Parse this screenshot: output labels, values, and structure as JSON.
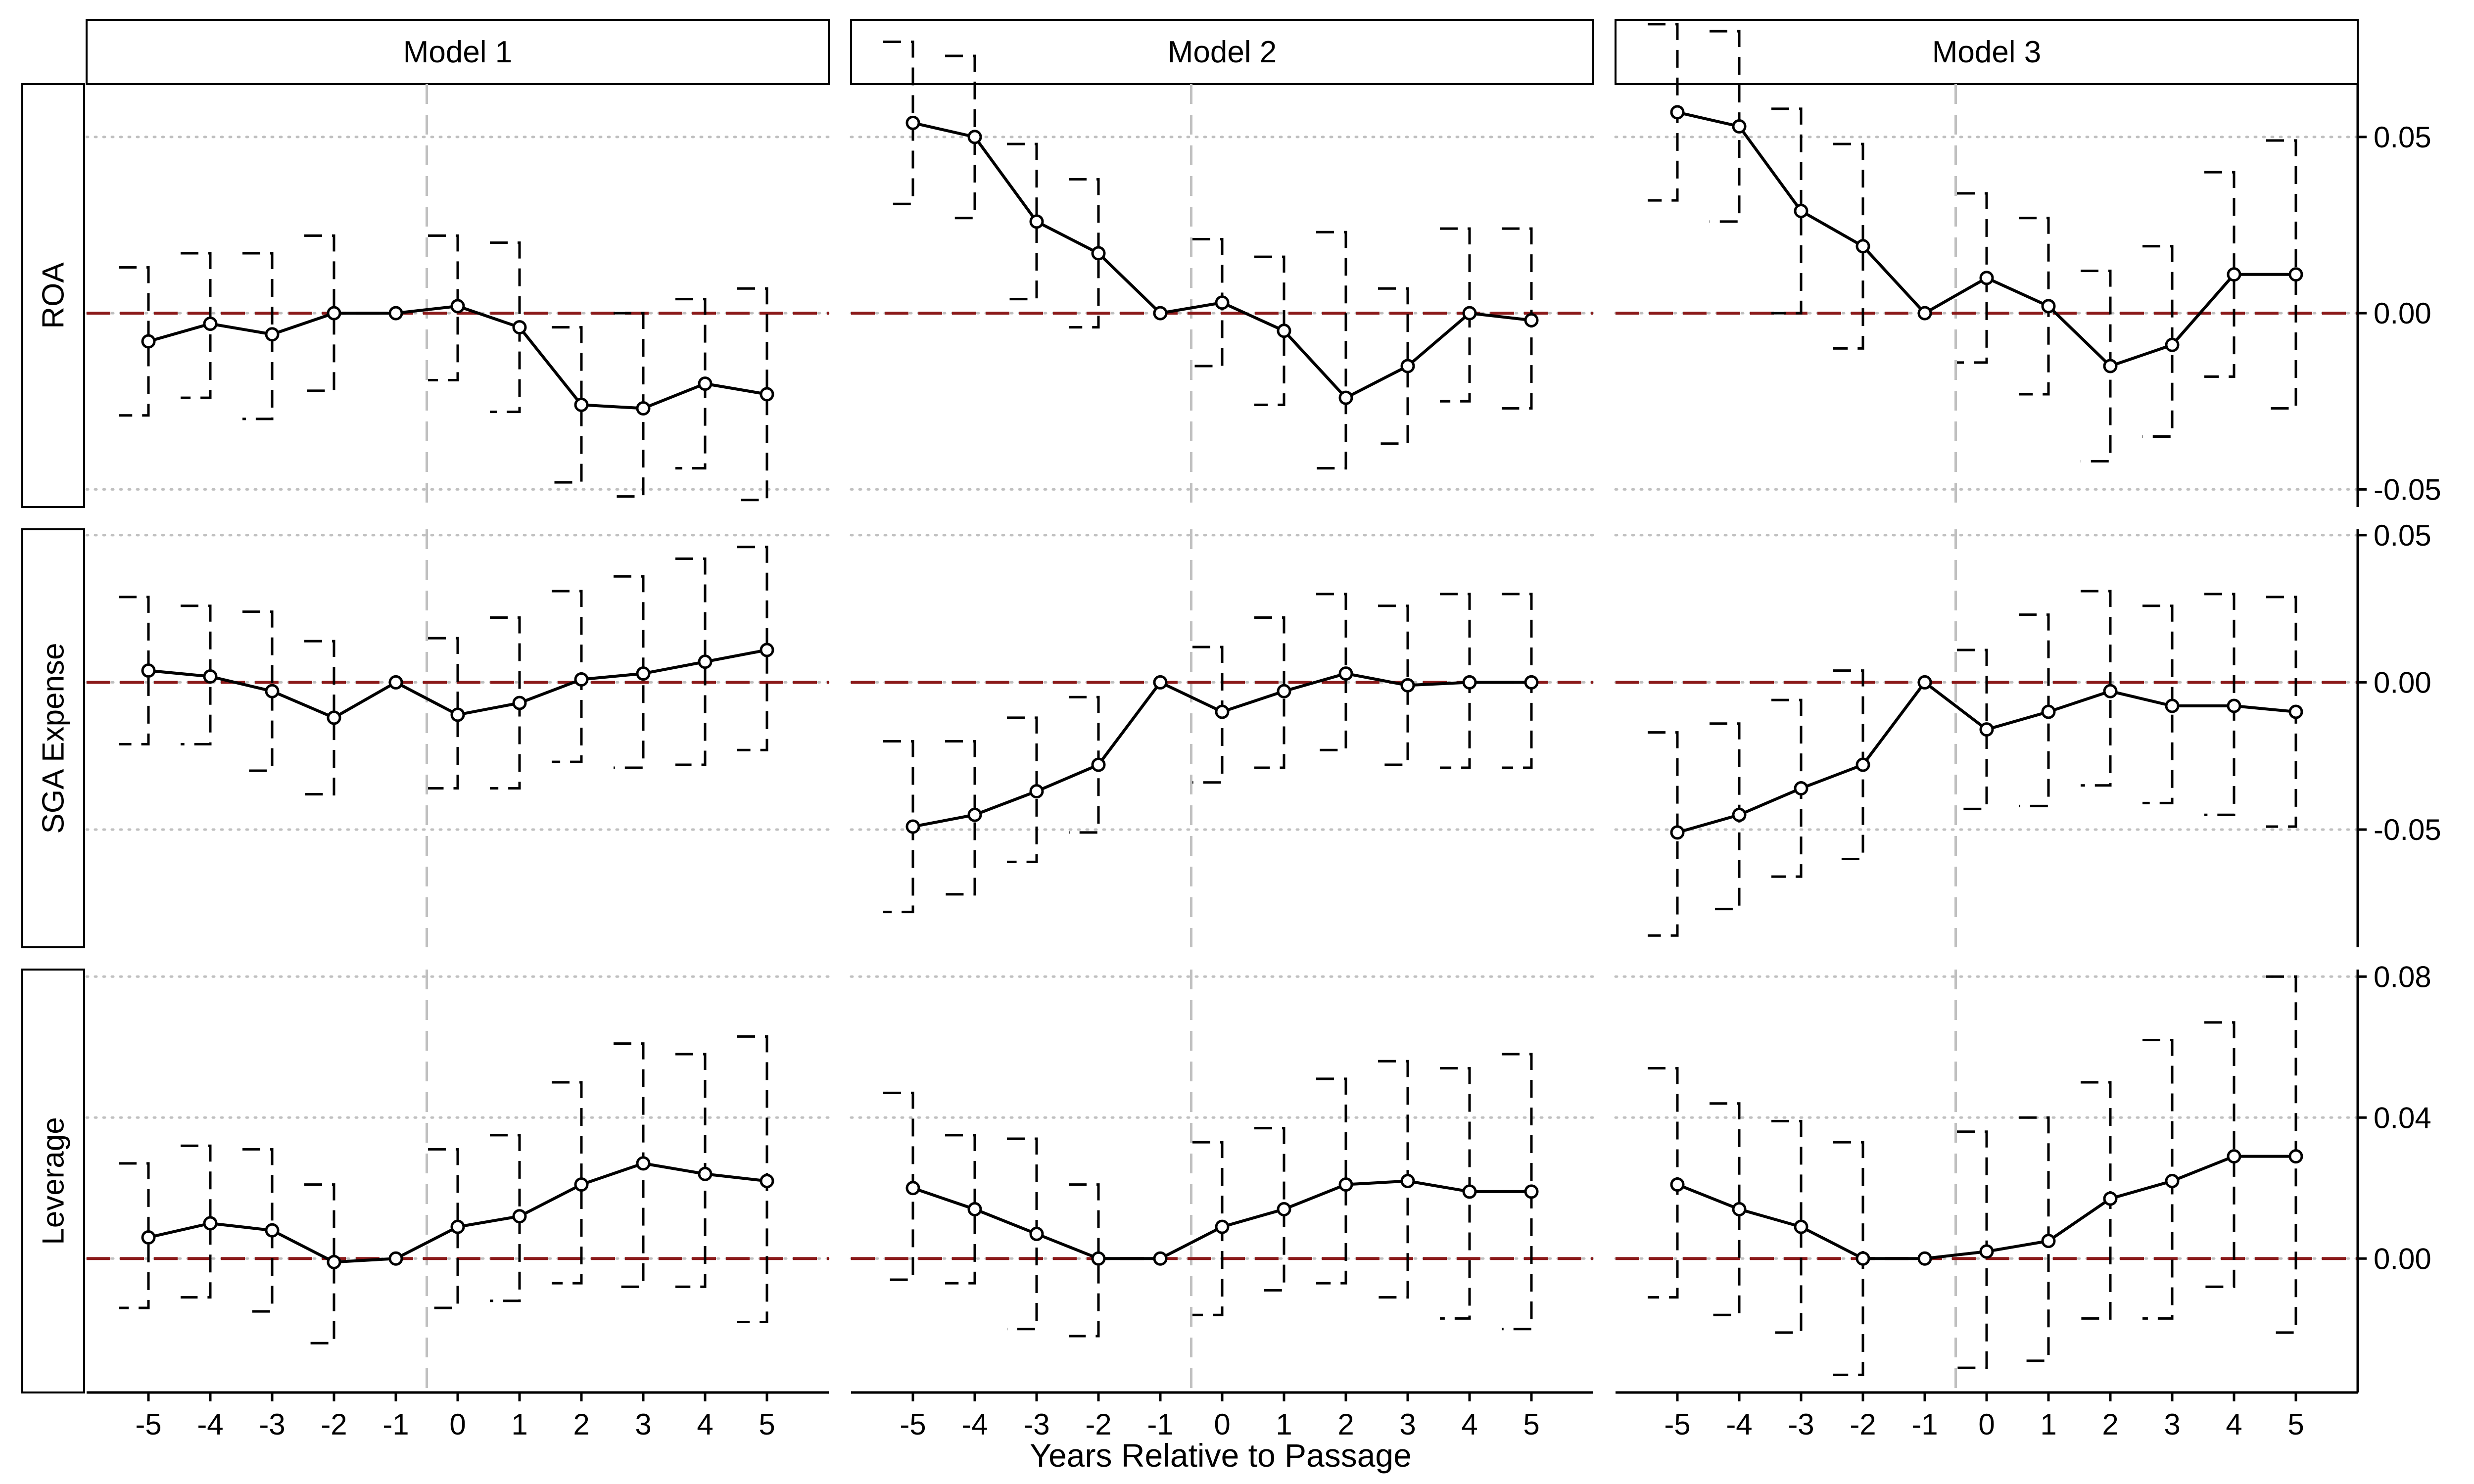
{
  "chart_data": {
    "type": "line",
    "layout": "facet-grid",
    "columns": [
      "Model 1",
      "Model 2",
      "Model 3"
    ],
    "rows": [
      {
        "name": "ROA",
        "ylim": [
          -0.055,
          0.065
        ],
        "yticks": [
          -0.05,
          0.0,
          0.05
        ],
        "ytick_labels": [
          "-0.05",
          "0.00",
          "0.05"
        ]
      },
      {
        "name": "SGA Expense",
        "ylim": [
          -0.09,
          0.052
        ],
        "yticks": [
          -0.05,
          0.0,
          0.05
        ],
        "ytick_labels": [
          "-0.05",
          "0.00",
          "0.05"
        ]
      },
      {
        "name": "Leverage",
        "ylim": [
          -0.038,
          0.082
        ],
        "yticks": [
          0.0,
          0.04,
          0.08
        ],
        "ytick_labels": [
          "0.00",
          "0.04",
          "0.08"
        ]
      }
    ],
    "x": [
      -5,
      -4,
      -3,
      -2,
      -1,
      0,
      1,
      2,
      3,
      4,
      5
    ],
    "xtick_labels": [
      "-5",
      "-4",
      "-3",
      "-2",
      "-1",
      "0",
      "1",
      "2",
      "3",
      "4",
      "5"
    ],
    "xlim": [
      -6,
      6
    ],
    "xlabel": "Years Relative to Passage",
    "reference_lines": {
      "horizontal_zero": true,
      "vertical_x": -0.5
    },
    "grid": "dotted horizontal at y ticks",
    "colors": {
      "line": "#000000",
      "error_bar": "#000000",
      "zero_line": "#8b1a1a",
      "vertical_line": "#c0c0c0",
      "grid": "#c0c0c0",
      "strip_fill": "#ffffff"
    },
    "panels": [
      {
        "row": "ROA",
        "col": "Model 1",
        "estimate": [
          -0.008,
          -0.003,
          -0.006,
          0.0,
          0.0,
          0.002,
          -0.004,
          -0.026,
          -0.027,
          -0.02,
          -0.023
        ],
        "lower": [
          -0.029,
          -0.024,
          -0.03,
          -0.022,
          null,
          -0.019,
          -0.028,
          -0.048,
          -0.052,
          -0.044,
          -0.053
        ],
        "upper": [
          0.013,
          0.017,
          0.017,
          0.022,
          null,
          0.022,
          0.02,
          -0.004,
          0.0,
          0.004,
          0.007
        ]
      },
      {
        "row": "ROA",
        "col": "Model 2",
        "estimate": [
          0.054,
          0.05,
          0.026,
          0.017,
          0.0,
          0.003,
          -0.005,
          -0.024,
          -0.015,
          0.0,
          -0.002
        ],
        "lower": [
          0.031,
          0.027,
          0.004,
          -0.004,
          null,
          -0.015,
          -0.026,
          -0.044,
          -0.037,
          -0.025,
          -0.027
        ],
        "upper": [
          0.077,
          0.073,
          0.048,
          0.038,
          null,
          0.021,
          0.016,
          0.023,
          0.007,
          0.024,
          0.024
        ]
      },
      {
        "row": "ROA",
        "col": "Model 3",
        "estimate": [
          0.057,
          0.053,
          0.029,
          0.019,
          0.0,
          0.01,
          0.002,
          -0.015,
          -0.009,
          0.011,
          0.011
        ],
        "lower": [
          0.032,
          0.026,
          0.0,
          -0.01,
          null,
          -0.014,
          -0.023,
          -0.042,
          -0.035,
          -0.018,
          -0.027
        ],
        "upper": [
          0.082,
          0.08,
          0.058,
          0.048,
          null,
          0.034,
          0.027,
          0.012,
          0.019,
          0.04,
          0.049
        ]
      },
      {
        "row": "SGA Expense",
        "col": "Model 1",
        "estimate": [
          0.004,
          0.002,
          -0.003,
          -0.012,
          0.0,
          -0.011,
          -0.007,
          0.001,
          0.003,
          0.007,
          0.011
        ],
        "lower": [
          -0.021,
          -0.021,
          -0.03,
          -0.038,
          null,
          -0.036,
          -0.036,
          -0.027,
          -0.029,
          -0.028,
          -0.023
        ],
        "upper": [
          0.029,
          0.026,
          0.024,
          0.014,
          null,
          0.015,
          0.022,
          0.031,
          0.036,
          0.042,
          0.046
        ]
      },
      {
        "row": "SGA Expense",
        "col": "Model 2",
        "estimate": [
          -0.049,
          -0.045,
          -0.037,
          -0.028,
          0.0,
          -0.01,
          -0.003,
          0.003,
          -0.001,
          0.0,
          0.0
        ],
        "lower": [
          -0.078,
          -0.072,
          -0.061,
          -0.051,
          null,
          -0.034,
          -0.029,
          -0.023,
          -0.028,
          -0.029,
          -0.029
        ],
        "upper": [
          -0.02,
          -0.02,
          -0.012,
          -0.005,
          null,
          0.012,
          0.022,
          0.03,
          0.026,
          0.03,
          0.03
        ]
      },
      {
        "row": "SGA Expense",
        "col": "Model 3",
        "estimate": [
          -0.051,
          -0.045,
          -0.036,
          -0.028,
          0.0,
          -0.016,
          -0.01,
          -0.003,
          -0.008,
          -0.008,
          -0.01
        ],
        "lower": [
          -0.086,
          -0.077,
          -0.066,
          -0.06,
          null,
          -0.043,
          -0.042,
          -0.035,
          -0.041,
          -0.045,
          -0.049
        ],
        "upper": [
          -0.017,
          -0.014,
          -0.006,
          0.004,
          null,
          0.011,
          0.023,
          0.031,
          0.026,
          0.03,
          0.029
        ]
      },
      {
        "row": "Leverage",
        "col": "Model 1",
        "estimate": [
          0.006,
          0.01,
          0.008,
          -0.001,
          0.0,
          0.009,
          0.012,
          0.021,
          0.027,
          0.024,
          0.022
        ],
        "lower": [
          -0.014,
          -0.011,
          -0.015,
          -0.024,
          null,
          -0.014,
          -0.012,
          -0.007,
          -0.008,
          -0.008,
          -0.018
        ],
        "upper": [
          0.027,
          0.032,
          0.031,
          0.021,
          null,
          0.031,
          0.035,
          0.05,
          0.061,
          0.058,
          0.063
        ]
      },
      {
        "row": "Leverage",
        "col": "Model 2",
        "estimate": [
          0.02,
          0.014,
          0.007,
          0.0,
          0.0,
          0.009,
          0.014,
          0.021,
          0.022,
          0.019,
          0.019
        ],
        "lower": [
          -0.006,
          -0.007,
          -0.02,
          -0.022,
          null,
          -0.016,
          -0.009,
          -0.007,
          -0.011,
          -0.017,
          -0.02
        ],
        "upper": [
          0.047,
          0.035,
          0.034,
          0.021,
          null,
          0.033,
          0.037,
          0.051,
          0.056,
          0.054,
          0.058
        ]
      },
      {
        "row": "Leverage",
        "col": "Model 3",
        "estimate": [
          0.021,
          0.014,
          0.009,
          0.0,
          0.0,
          0.002,
          0.005,
          0.017,
          0.022,
          0.029,
          0.029
        ],
        "lower": [
          -0.011,
          -0.016,
          -0.021,
          -0.033,
          null,
          -0.031,
          -0.029,
          -0.017,
          -0.017,
          -0.008,
          -0.021
        ],
        "upper": [
          0.054,
          0.044,
          0.039,
          0.033,
          null,
          0.036,
          0.04,
          0.05,
          0.062,
          0.067,
          0.08
        ]
      }
    ]
  }
}
